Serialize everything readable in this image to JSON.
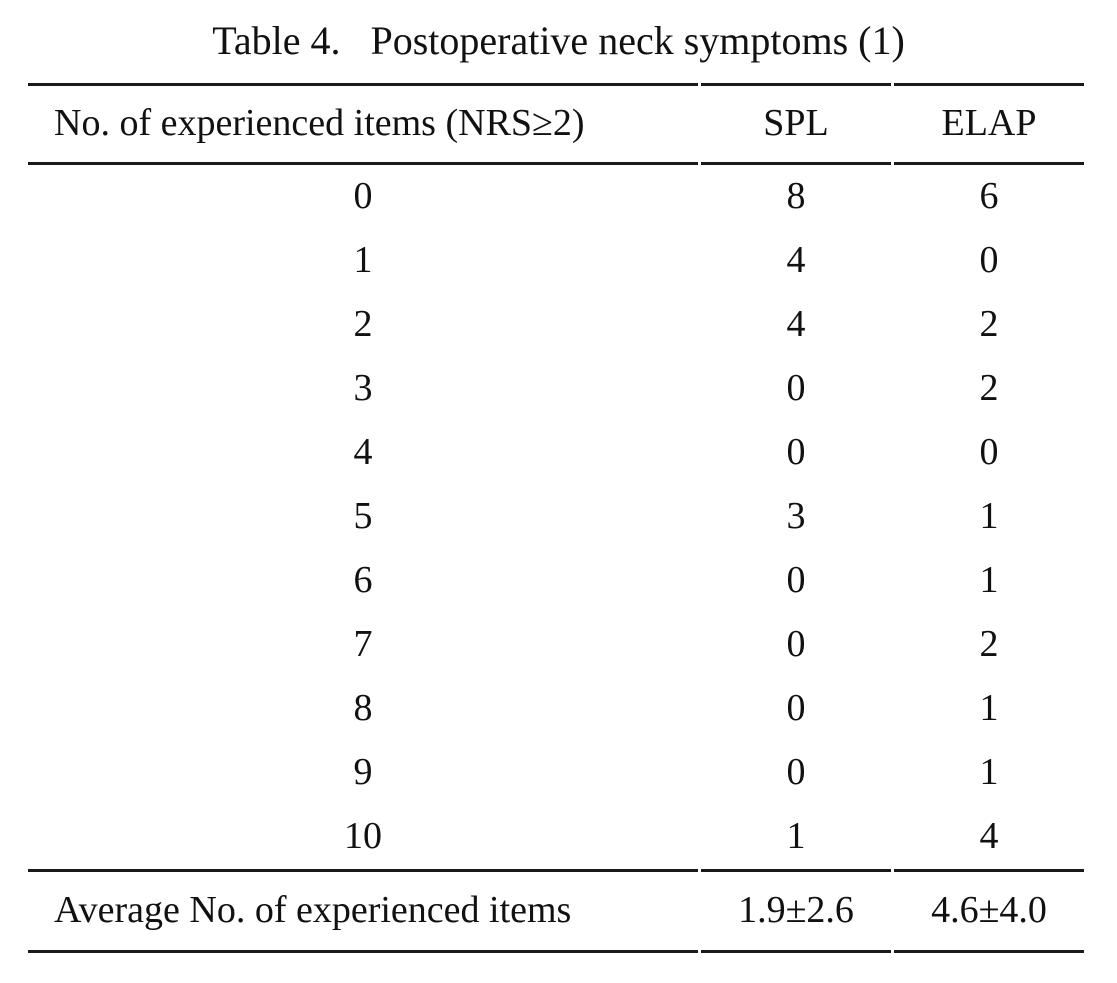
{
  "page": {
    "background": "#ffffff",
    "text_color": "#111111",
    "rule_color": "#1a1a1a"
  },
  "title": {
    "label": "Table 4.",
    "text": "Postoperative neck symptoms (1)"
  },
  "table": {
    "header": {
      "col1": "No. of experienced items (NRS≥2)",
      "col2": "SPL",
      "col3": "ELAP"
    },
    "rows": [
      [
        "0",
        "8",
        "6"
      ],
      [
        "1",
        "4",
        "0"
      ],
      [
        "2",
        "4",
        "2"
      ],
      [
        "3",
        "0",
        "2"
      ],
      [
        "4",
        "0",
        "0"
      ],
      [
        "5",
        "3",
        "1"
      ],
      [
        "6",
        "0",
        "1"
      ],
      [
        "7",
        "0",
        "2"
      ],
      [
        "8",
        "0",
        "1"
      ],
      [
        "9",
        "0",
        "1"
      ],
      [
        "10",
        "1",
        "4"
      ]
    ],
    "footer": {
      "label": "Average No. of experienced items",
      "spl": "1.9±2.6",
      "elap": "4.6±4.0"
    }
  }
}
